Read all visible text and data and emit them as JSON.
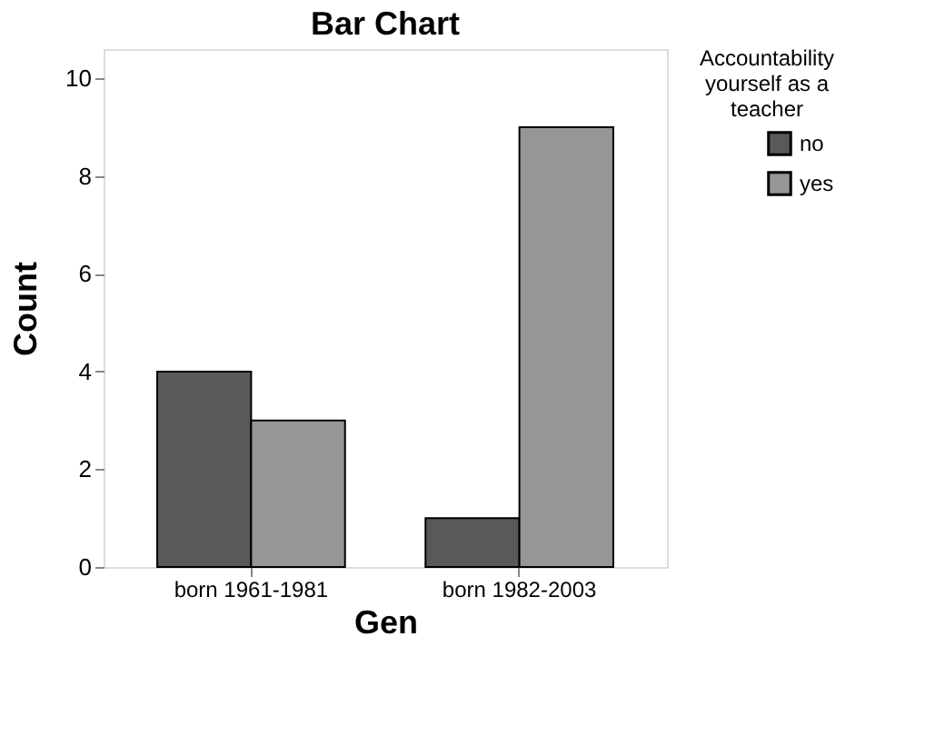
{
  "chart_data": {
    "type": "bar",
    "title": "Bar Chart",
    "xlabel": "Gen",
    "ylabel": "Count",
    "legend_title": "Accountability yourself as a teacher",
    "categories": [
      "born 1961-1981",
      "born 1982-2003"
    ],
    "series": [
      {
        "name": "no",
        "color": "#595959",
        "values": [
          4,
          1
        ]
      },
      {
        "name": "yes",
        "color": "#969696",
        "values": [
          3,
          9
        ]
      }
    ],
    "ylim": [
      0,
      10.6
    ],
    "yticks": [
      0,
      2,
      4,
      6,
      8,
      10
    ],
    "grid": false,
    "legend": "right"
  }
}
